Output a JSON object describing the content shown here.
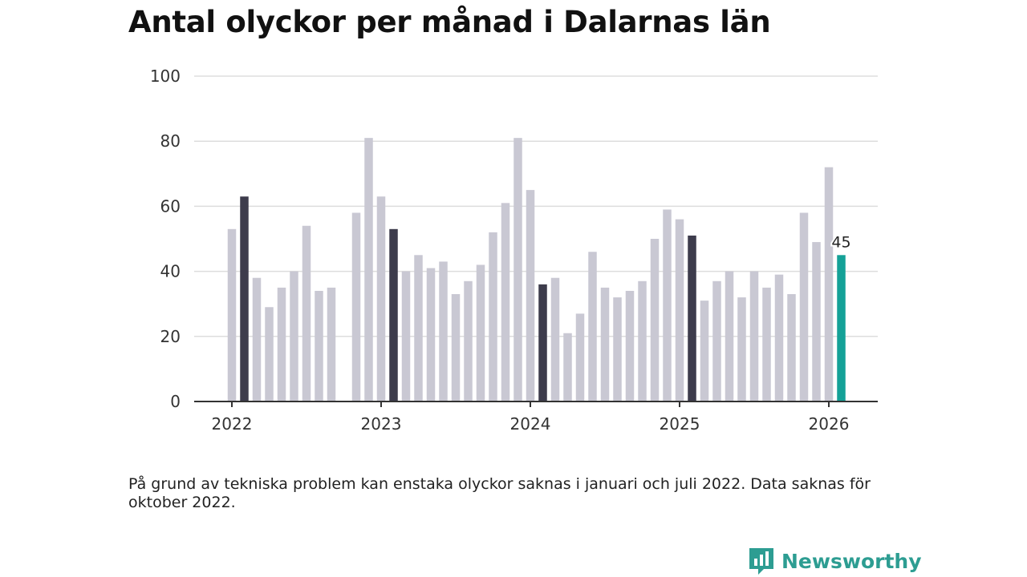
{
  "chart_data": {
    "type": "bar",
    "title": "Antal olyckor per månad i Dalarnas län",
    "xlabel": "",
    "ylabel": "",
    "ylim": [
      0,
      100
    ],
    "yticks": [
      "0",
      "20",
      "40",
      "60",
      "80",
      "100"
    ],
    "xticks": [
      {
        "label": "2022",
        "index": 0
      },
      {
        "label": "2023",
        "index": 12
      },
      {
        "label": "2024",
        "index": 24
      },
      {
        "label": "2025",
        "index": 36
      },
      {
        "label": "2026",
        "index": 48
      }
    ],
    "series": [
      {
        "name": "Antal olyckor",
        "values": [
          53,
          63,
          38,
          29,
          35,
          40,
          54,
          34,
          35,
          null,
          58,
          81,
          63,
          53,
          40,
          45,
          41,
          43,
          33,
          37,
          42,
          52,
          61,
          81,
          65,
          36,
          38,
          21,
          27,
          46,
          35,
          32,
          34,
          37,
          50,
          59,
          56,
          51,
          31,
          37,
          40,
          32,
          40,
          35,
          39,
          33,
          58,
          49,
          72,
          45
        ],
        "highlighted_indices": [
          1,
          13,
          25,
          37
        ],
        "latest_index": 49
      }
    ],
    "data_labels": [
      {
        "index": 49,
        "text": "45"
      }
    ]
  },
  "colors": {
    "bar": "#c9c8d3",
    "highlight": "#3d3c4c",
    "latest": "#14a197",
    "grid": "#dddddd",
    "axis": "#333333"
  },
  "note": "På grund av tekniska problem kan enstaka olyckor saknas i januari och juli 2022. Data saknas för oktober 2022.",
  "brand": {
    "name": "Newsworthy",
    "icon": "newsworthy-logo-icon"
  }
}
